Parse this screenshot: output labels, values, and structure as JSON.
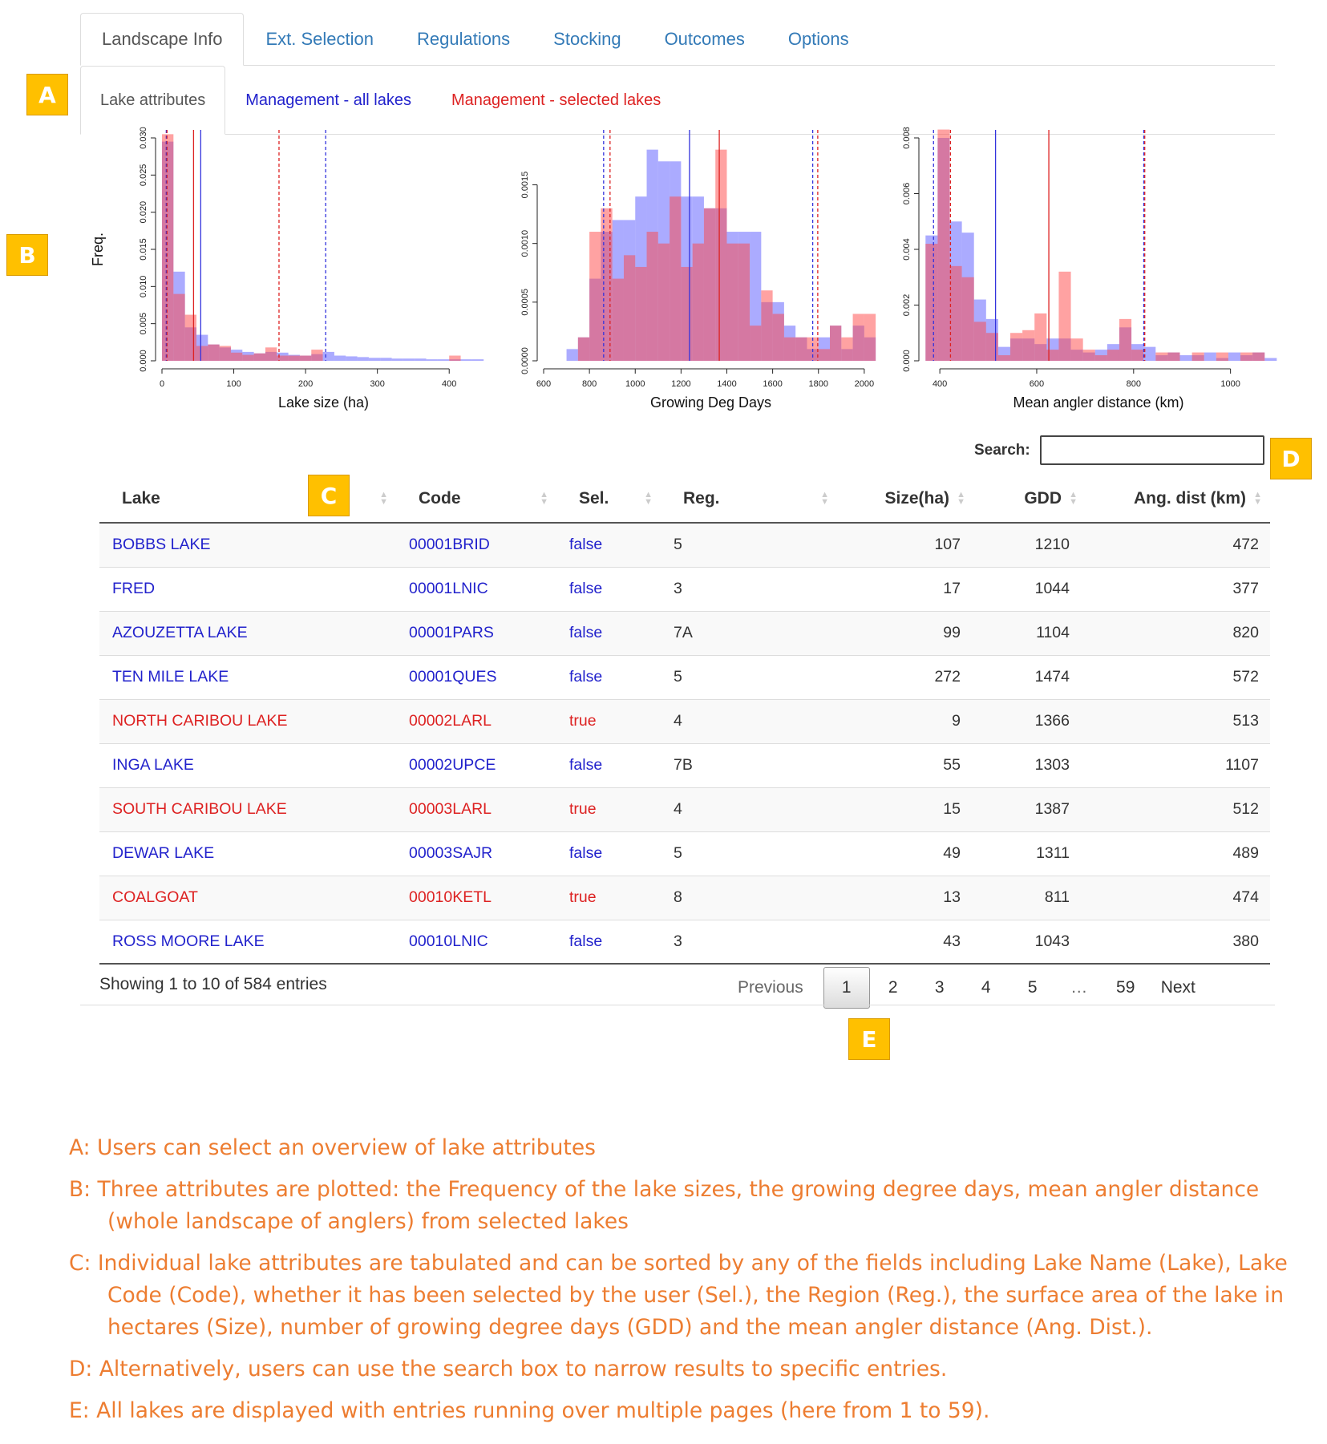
{
  "tabs": [
    {
      "label": "Landscape Info",
      "active": true
    },
    {
      "label": "Ext. Selection",
      "active": false
    },
    {
      "label": "Regulations",
      "active": false
    },
    {
      "label": "Stocking",
      "active": false
    },
    {
      "label": "Outcomes",
      "active": false
    },
    {
      "label": "Options",
      "active": false
    }
  ],
  "subtabs": [
    {
      "label": "Lake attributes",
      "style": "active"
    },
    {
      "label": "Management - all lakes",
      "style": "blue"
    },
    {
      "label": "Management - selected lakes",
      "style": "red"
    }
  ],
  "callouts": {
    "a": "A",
    "b": "B",
    "c": "C",
    "d": "D",
    "e": "E"
  },
  "colors": {
    "all_lakes": "#8080ff",
    "selected_lakes": "#ff7f7f",
    "overlap": "#b04b90",
    "tab_link": "#337ab7",
    "callout": "#ffc000",
    "note_text": "#ed7d31"
  },
  "chart_data": [
    {
      "type": "bar",
      "xlabel": "Lake size (ha)",
      "ylabel": "Freq.",
      "xlim": [
        0,
        450
      ],
      "ylim": [
        0,
        0.03
      ],
      "xticks": [
        "0",
        "100",
        "200",
        "300",
        "400"
      ],
      "yticks": [
        "0.000",
        "0.005",
        "0.010",
        "0.015",
        "0.020",
        "0.025",
        "0.030"
      ],
      "bin_width": 16,
      "bins": [
        8,
        24,
        40,
        56,
        72,
        88,
        104,
        120,
        136,
        152,
        168,
        184,
        200,
        216,
        232,
        248,
        264,
        280,
        296,
        312,
        328,
        344,
        360,
        376,
        392,
        408,
        424,
        440
      ],
      "series": [
        {
          "name": "all",
          "values": [
            0.0295,
            0.012,
            0.0045,
            0.0035,
            0.0022,
            0.0018,
            0.0015,
            0.0012,
            0.001,
            0.0012,
            0.0011,
            0.0008,
            0.0007,
            0.0009,
            0.0012,
            0.0007,
            0.0006,
            0.0005,
            0.0004,
            0.0004,
            0.0003,
            0.0003,
            0.0003,
            0.0002,
            0.0002,
            0.0002,
            0.0002,
            0.0002
          ]
        },
        {
          "name": "selected",
          "values": [
            0.0305,
            0.009,
            0.0062,
            0.002,
            0.0022,
            0.002,
            0.0011,
            0.0008,
            0.001,
            0.0018,
            0.0007,
            0.0007,
            0.0007,
            0.0015,
            0.0,
            0.0,
            0.0,
            0.0,
            0.0,
            0.0,
            0.0,
            0.0,
            0.0,
            0.0,
            0.0,
            0.0007,
            0.0,
            0.0
          ]
        }
      ],
      "vlines": [
        {
          "x": 6,
          "color": "all",
          "style": "dashed"
        },
        {
          "x": 7,
          "color": "selected",
          "style": "dashed"
        },
        {
          "x": 44,
          "color": "selected",
          "style": "solid"
        },
        {
          "x": 54,
          "color": "all",
          "style": "solid"
        },
        {
          "x": 163,
          "color": "selected",
          "style": "dashed"
        },
        {
          "x": 228,
          "color": "all",
          "style": "dashed"
        }
      ]
    },
    {
      "type": "bar",
      "xlabel": "Growing Deg Days",
      "ylabel": "",
      "xlim": [
        600,
        2060
      ],
      "ylim": [
        0,
        0.0019
      ],
      "xticks": [
        "600",
        "800",
        "1000",
        "1200",
        "1400",
        "1600",
        "1800",
        "2000"
      ],
      "yticks": [
        "0.0000",
        "0.0005",
        "0.0010",
        "0.0015"
      ],
      "bin_width": 50,
      "bins": [
        725,
        775,
        825,
        875,
        925,
        975,
        1025,
        1075,
        1125,
        1175,
        1225,
        1275,
        1325,
        1375,
        1425,
        1475,
        1525,
        1575,
        1625,
        1675,
        1725,
        1775,
        1825,
        1875,
        1925,
        1975,
        2025
      ],
      "series": [
        {
          "name": "all",
          "values": [
            0.0001,
            0.0002,
            0.0007,
            0.0011,
            0.0012,
            0.0012,
            0.0014,
            0.0018,
            0.0017,
            0.0017,
            0.0014,
            0.0014,
            0.0013,
            0.0013,
            0.0011,
            0.0011,
            0.0011,
            0.0005,
            0.0005,
            0.0003,
            0.0002,
            0.0001,
            0.0002,
            0.0003,
            0.0001,
            0.0003,
            0.0002
          ]
        },
        {
          "name": "selected",
          "values": [
            0.0,
            0.0002,
            0.0011,
            0.0013,
            0.0007,
            0.0009,
            0.0008,
            0.0011,
            0.001,
            0.0014,
            0.0008,
            0.001,
            0.0013,
            0.0018,
            0.001,
            0.001,
            0.0003,
            0.0006,
            0.0004,
            0.0002,
            0.0002,
            0.0002,
            0.0001,
            0.0003,
            0.0002,
            0.0004,
            0.0004
          ]
        }
      ],
      "vlines": [
        {
          "x": 862,
          "color": "all",
          "style": "dashed"
        },
        {
          "x": 890,
          "color": "selected",
          "style": "dashed"
        },
        {
          "x": 1237,
          "color": "all",
          "style": "solid"
        },
        {
          "x": 1367,
          "color": "selected",
          "style": "solid"
        },
        {
          "x": 1775,
          "color": "all",
          "style": "dashed"
        },
        {
          "x": 1797,
          "color": "selected",
          "style": "dashed"
        }
      ]
    },
    {
      "type": "bar",
      "xlabel": "Mean angler distance (km)",
      "ylabel": "",
      "xlim": [
        370,
        1085
      ],
      "ylim": [
        0,
        0.008
      ],
      "xticks": [
        "400",
        "600",
        "800",
        "1000"
      ],
      "yticks": [
        "0.000",
        "0.002",
        "0.004",
        "0.006",
        "0.008"
      ],
      "bin_width": 25,
      "bins": [
        383,
        408,
        433,
        458,
        483,
        508,
        533,
        558,
        583,
        608,
        633,
        658,
        683,
        708,
        733,
        758,
        783,
        808,
        833,
        858,
        883,
        908,
        933,
        958,
        983,
        1008,
        1033,
        1058,
        1083
      ],
      "series": [
        {
          "name": "all",
          "values": [
            0.0045,
            0.008,
            0.005,
            0.0046,
            0.0022,
            0.0015,
            0.0005,
            0.0008,
            0.0008,
            0.0006,
            0.0008,
            0.0008,
            0.0004,
            0.0003,
            0.0004,
            0.0006,
            0.0012,
            0.0006,
            0.0005,
            0.0002,
            0.0003,
            0.0002,
            0.0002,
            0.0003,
            0.0001,
            0.0003,
            0.0002,
            0.0003,
            0.0001
          ]
        },
        {
          "name": "selected",
          "values": [
            0.0042,
            0.0083,
            0.0034,
            0.003,
            0.0014,
            0.001,
            0.0002,
            0.001,
            0.0011,
            0.0017,
            0.0004,
            0.0032,
            0.0008,
            0.0004,
            0.0002,
            0.0004,
            0.0015,
            0.0004,
            0.0,
            0.0003,
            0.0003,
            0.0,
            0.0003,
            0.0,
            0.0003,
            0.0,
            0.0003,
            0.0003,
            0.0
          ]
        }
      ],
      "vlines": [
        {
          "x": 387,
          "color": "all",
          "style": "dashed"
        },
        {
          "x": 422,
          "color": "selected",
          "style": "dashed"
        },
        {
          "x": 515,
          "color": "all",
          "style": "solid"
        },
        {
          "x": 625,
          "color": "selected",
          "style": "solid"
        },
        {
          "x": 821,
          "color": "all",
          "style": "dashed"
        },
        {
          "x": 823,
          "color": "selected",
          "style": "dashed"
        }
      ]
    }
  ],
  "search": {
    "label": "Search:",
    "value": "",
    "placeholder": ""
  },
  "table": {
    "columns": [
      {
        "key": "lake",
        "label": "Lake",
        "numeric": false
      },
      {
        "key": "code",
        "label": "Code",
        "numeric": false
      },
      {
        "key": "sel",
        "label": "Sel.",
        "numeric": false
      },
      {
        "key": "reg",
        "label": "Reg.",
        "numeric": false
      },
      {
        "key": "size",
        "label": "Size(ha)",
        "numeric": true
      },
      {
        "key": "gdd",
        "label": "GDD",
        "numeric": true
      },
      {
        "key": "angdist",
        "label": "Ang. dist (km)",
        "numeric": true
      }
    ],
    "rows": [
      {
        "lake": "BOBBS LAKE",
        "code": "00001BRID",
        "sel": "false",
        "reg": "5",
        "size": "107",
        "gdd": "1210",
        "angdist": "472"
      },
      {
        "lake": "FRED",
        "code": "00001LNIC",
        "sel": "false",
        "reg": "3",
        "size": "17",
        "gdd": "1044",
        "angdist": "377"
      },
      {
        "lake": "AZOUZETTA LAKE",
        "code": "00001PARS",
        "sel": "false",
        "reg": "7A",
        "size": "99",
        "gdd": "1104",
        "angdist": "820"
      },
      {
        "lake": "TEN MILE LAKE",
        "code": "00001QUES",
        "sel": "false",
        "reg": "5",
        "size": "272",
        "gdd": "1474",
        "angdist": "572"
      },
      {
        "lake": "NORTH CARIBOU LAKE",
        "code": "00002LARL",
        "sel": "true",
        "reg": "4",
        "size": "9",
        "gdd": "1366",
        "angdist": "513"
      },
      {
        "lake": "INGA LAKE",
        "code": "00002UPCE",
        "sel": "false",
        "reg": "7B",
        "size": "55",
        "gdd": "1303",
        "angdist": "1107"
      },
      {
        "lake": "SOUTH CARIBOU LAKE",
        "code": "00003LARL",
        "sel": "true",
        "reg": "4",
        "size": "15",
        "gdd": "1387",
        "angdist": "512"
      },
      {
        "lake": "DEWAR LAKE",
        "code": "00003SAJR",
        "sel": "false",
        "reg": "5",
        "size": "49",
        "gdd": "1311",
        "angdist": "489"
      },
      {
        "lake": "COALGOAT",
        "code": "00010KETL",
        "sel": "true",
        "reg": "8",
        "size": "13",
        "gdd": "811",
        "angdist": "474"
      },
      {
        "lake": "ROSS MOORE LAKE",
        "code": "00010LNIC",
        "sel": "false",
        "reg": "3",
        "size": "43",
        "gdd": "1043",
        "angdist": "380"
      }
    ]
  },
  "footer": {
    "info": "Showing 1 to 10 of 584 entries",
    "previous": "Previous",
    "next": "Next",
    "pages": [
      "1",
      "2",
      "3",
      "4",
      "5",
      "…",
      "59"
    ],
    "current_page": "1"
  },
  "notes": [
    "A: Users can select an overview of lake attributes",
    "B: Three attributes are plotted: the Frequency of the lake sizes, the growing degree days, mean angler distance (whole landscape of anglers) from selected lakes",
    "C: Individual lake attributes are tabulated and can be sorted by any of the fields including Lake Name (Lake), Lake Code (Code), whether it has been selected by the user (Sel.), the Region (Reg.), the surface area of the lake in hectares (Size), number of growing degree days (GDD) and the mean angler distance (Ang. Dist.).",
    "D: Alternatively, users can use the search box to narrow results to specific entries.",
    "E: All lakes are displayed with entries running over multiple pages (here from 1 to 59)."
  ]
}
